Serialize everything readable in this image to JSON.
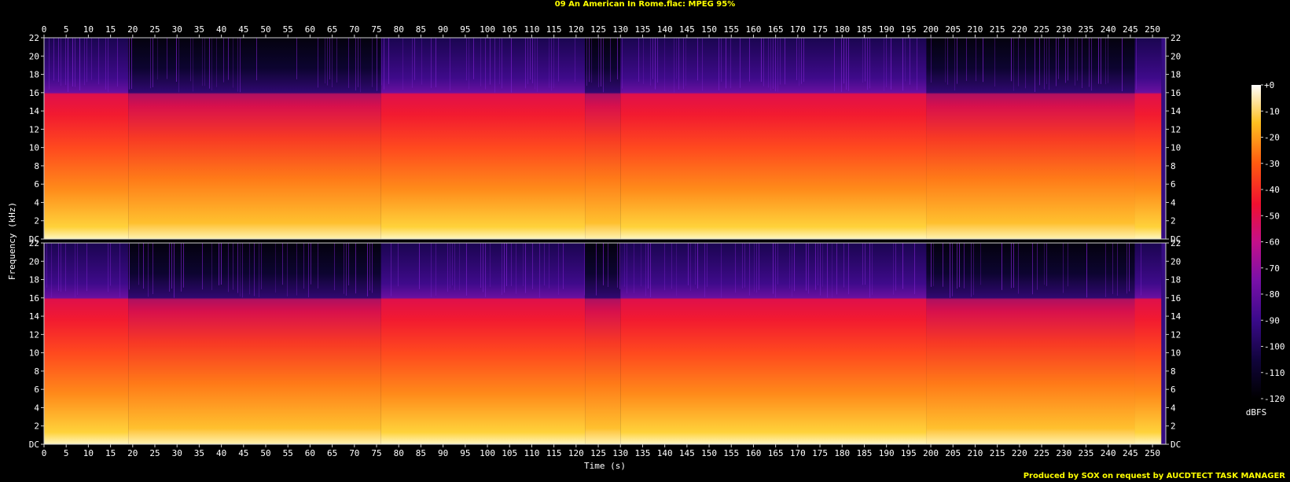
{
  "title": "09 An American In Rome.flac: MPEG 95%",
  "credit": "Produced by SOX on request by AUCDTECT TASK MANAGER",
  "chart_data": {
    "type": "heatmap",
    "title": "09 An American In Rome.flac: MPEG 95%",
    "xlabel": "Time (s)",
    "ylabel": "Frequency (kHz)",
    "xlim": [
      0,
      253
    ],
    "x_ticks": [
      "0",
      "5",
      "10",
      "15",
      "20",
      "25",
      "30",
      "35",
      "40",
      "45",
      "50",
      "55",
      "60",
      "65",
      "70",
      "75",
      "80",
      "85",
      "90",
      "95",
      "100",
      "105",
      "110",
      "115",
      "120",
      "125",
      "130",
      "135",
      "140",
      "145",
      "150",
      "155",
      "160",
      "165",
      "170",
      "175",
      "180",
      "185",
      "190",
      "195",
      "200",
      "205",
      "210",
      "215",
      "220",
      "225",
      "230",
      "235",
      "240",
      "245",
      "250"
    ],
    "ylim": [
      0,
      22
    ],
    "y_ticks": [
      "DC",
      "2",
      "4",
      "6",
      "8",
      "10",
      "12",
      "14",
      "16",
      "18",
      "20",
      "22"
    ],
    "channels": 2,
    "colorbar": {
      "label": "dBFS",
      "range": [
        -120,
        0
      ],
      "ticks": [
        "+0",
        "-10",
        "-20",
        "-30",
        "-40",
        "-50",
        "-60",
        "-70",
        "-80",
        "-90",
        "-100",
        "-110",
        "-120"
      ]
    },
    "segments_s": [
      {
        "start": 0,
        "end": 19,
        "cutoff_khz": 16
      },
      {
        "start": 19,
        "end": 76,
        "cutoff_khz": 16
      },
      {
        "start": 76,
        "end": 122,
        "cutoff_khz": 16
      },
      {
        "start": 122,
        "end": 130,
        "cutoff_khz": 16
      },
      {
        "start": 130,
        "end": 199,
        "cutoff_khz": 16
      },
      {
        "start": 199,
        "end": 246,
        "cutoff_khz": 16
      },
      {
        "start": 246,
        "end": 252,
        "cutoff_khz": 16
      }
    ],
    "grid": false
  }
}
